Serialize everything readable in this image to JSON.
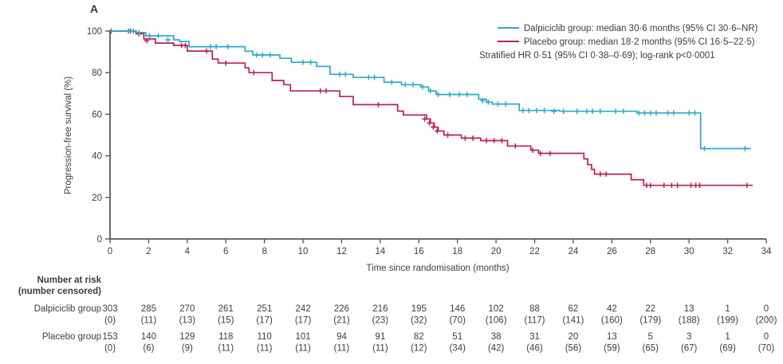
{
  "panel_label": "A",
  "colors": {
    "axis": "#58595b",
    "text": "#3d3d3d",
    "dalpiciclib": "#2fa9c8",
    "placebo": "#bc2052"
  },
  "chart_data": {
    "type": "line",
    "subtype": "kaplan-meier-step",
    "title": "A",
    "xlabel": "Time since randomisation (months)",
    "ylabel": "Progression-free survival (%)",
    "xlim": [
      0,
      34
    ],
    "ylim": [
      0,
      100
    ],
    "x_ticks": [
      0,
      2,
      4,
      6,
      8,
      10,
      12,
      14,
      16,
      18,
      20,
      22,
      24,
      26,
      28,
      30,
      32,
      34
    ],
    "y_ticks": [
      0,
      20,
      40,
      60,
      80,
      100
    ],
    "grid": false,
    "legend_position": "top-right",
    "legend": [
      {
        "label": "Dalpiciclib group: median 30·6 months (95% CI 30·6–NR)",
        "color": "#2fa9c8"
      },
      {
        "label": "Placebo group: median 18·2 months (95% CI 16·5–22·5)",
        "color": "#bc2052"
      }
    ],
    "annotation": "Stratified HR 0·51 (95% CI 0·38–0·69); log-rank p<0·0001",
    "series": [
      {
        "name": "Placebo group",
        "color": "#bc2052",
        "end": 33.3,
        "steps": [
          [
            0,
            100
          ],
          [
            1.35,
            98.7
          ],
          [
            1.75,
            96.2
          ],
          [
            2.35,
            94.2
          ],
          [
            3.3,
            93.1
          ],
          [
            4.0,
            90.4
          ],
          [
            5.3,
            86.5
          ],
          [
            5.6,
            84.6
          ],
          [
            7.0,
            82.3
          ],
          [
            7.2,
            80.0
          ],
          [
            8.4,
            76.2
          ],
          [
            9.0,
            74.2
          ],
          [
            9.35,
            71.2
          ],
          [
            11.9,
            68.5
          ],
          [
            12.6,
            64.6
          ],
          [
            14.9,
            61.5
          ],
          [
            15.2,
            59.6
          ],
          [
            16.4,
            57.7
          ],
          [
            16.6,
            55.8
          ],
          [
            16.8,
            53.8
          ],
          [
            17.0,
            51.9
          ],
          [
            17.3,
            50.0
          ],
          [
            18.2,
            48.5
          ],
          [
            19.2,
            47.3
          ],
          [
            20.6,
            44.7
          ],
          [
            21.8,
            42.7
          ],
          [
            22.2,
            41.2
          ],
          [
            24.55,
            38.5
          ],
          [
            24.75,
            35.8
          ],
          [
            24.95,
            33.5
          ],
          [
            25.1,
            31.2
          ],
          [
            27.0,
            28.5
          ],
          [
            27.65,
            25.8
          ]
        ],
        "censors": [
          [
            0.05,
            100
          ],
          [
            1.05,
            100
          ],
          [
            1.5,
            98.7
          ],
          [
            1.9,
            95.4
          ],
          [
            3.7,
            93.1
          ],
          [
            3.9,
            93.1
          ],
          [
            5.0,
            90.4
          ],
          [
            6.0,
            84.6
          ],
          [
            7.45,
            80.0
          ],
          [
            10.9,
            71.2
          ],
          [
            11.2,
            71.2
          ],
          [
            13.9,
            64.6
          ],
          [
            16.3,
            57.7
          ],
          [
            16.55,
            55.8
          ],
          [
            16.75,
            53.8
          ],
          [
            16.95,
            51.9
          ],
          [
            17.5,
            50.0
          ],
          [
            18.4,
            48.5
          ],
          [
            18.8,
            48.5
          ],
          [
            19.5,
            47.3
          ],
          [
            19.9,
            47.3
          ],
          [
            20.3,
            47.3
          ],
          [
            21.0,
            44.7
          ],
          [
            21.9,
            42.7
          ],
          [
            22.3,
            41.2
          ],
          [
            22.8,
            41.2
          ],
          [
            25.4,
            31.2
          ],
          [
            25.7,
            31.2
          ],
          [
            27.8,
            25.8
          ],
          [
            28.0,
            25.8
          ],
          [
            28.7,
            25.8
          ],
          [
            29.1,
            25.8
          ],
          [
            29.4,
            25.8
          ],
          [
            30.1,
            25.8
          ],
          [
            30.35,
            25.8
          ],
          [
            30.55,
            25.8
          ],
          [
            33.0,
            25.8
          ]
        ]
      },
      {
        "name": "Dalpiciclib group",
        "color": "#2fa9c8",
        "end": 33.2,
        "steps": [
          [
            0,
            100
          ],
          [
            1.3,
            99.3
          ],
          [
            1.85,
            97.7
          ],
          [
            3.3,
            95.8
          ],
          [
            3.6,
            95.0
          ],
          [
            4.1,
            92.5
          ],
          [
            7.0,
            90.3
          ],
          [
            7.4,
            88.5
          ],
          [
            8.8,
            86.9
          ],
          [
            9.4,
            85.0
          ],
          [
            10.7,
            83.0
          ],
          [
            11.4,
            79.2
          ],
          [
            12.6,
            77.7
          ],
          [
            14.2,
            75.4
          ],
          [
            15.1,
            74.2
          ],
          [
            16.1,
            73.1
          ],
          [
            16.5,
            71.2
          ],
          [
            16.9,
            69.5
          ],
          [
            19.1,
            67.3
          ],
          [
            19.5,
            65.8
          ],
          [
            19.8,
            64.9
          ],
          [
            21.2,
            61.8
          ],
          [
            23.3,
            61.4
          ],
          [
            27.3,
            60.6
          ],
          [
            30.6,
            43.5
          ]
        ],
        "censors": [
          [
            0.95,
            100
          ],
          [
            1.2,
            100
          ],
          [
            1.5,
            99.3
          ],
          [
            2.05,
            97.7
          ],
          [
            2.5,
            97.7
          ],
          [
            3.0,
            95.8
          ],
          [
            5.2,
            92.5
          ],
          [
            5.5,
            92.5
          ],
          [
            6.1,
            92.5
          ],
          [
            7.6,
            88.5
          ],
          [
            7.9,
            88.5
          ],
          [
            8.3,
            88.5
          ],
          [
            10.0,
            85.0
          ],
          [
            10.4,
            85.0
          ],
          [
            11.9,
            79.2
          ],
          [
            12.2,
            79.2
          ],
          [
            13.4,
            77.7
          ],
          [
            13.7,
            77.7
          ],
          [
            14.6,
            75.4
          ],
          [
            15.3,
            74.2
          ],
          [
            15.7,
            74.2
          ],
          [
            16.2,
            73.1
          ],
          [
            16.6,
            71.2
          ],
          [
            17.0,
            69.5
          ],
          [
            17.6,
            69.5
          ],
          [
            18.1,
            69.5
          ],
          [
            18.5,
            69.5
          ],
          [
            19.3,
            66.5
          ],
          [
            19.6,
            65.8
          ],
          [
            20.1,
            64.9
          ],
          [
            20.5,
            64.9
          ],
          [
            21.4,
            61.8
          ],
          [
            21.7,
            61.8
          ],
          [
            22.1,
            61.8
          ],
          [
            22.5,
            61.8
          ],
          [
            23.0,
            61.4
          ],
          [
            23.5,
            61.4
          ],
          [
            24.2,
            61.4
          ],
          [
            24.7,
            61.4
          ],
          [
            25.0,
            61.4
          ],
          [
            25.4,
            61.4
          ],
          [
            26.2,
            61.4
          ],
          [
            26.6,
            61.4
          ],
          [
            27.4,
            60.6
          ],
          [
            27.7,
            60.6
          ],
          [
            28.0,
            60.6
          ],
          [
            28.3,
            60.6
          ],
          [
            28.9,
            60.6
          ],
          [
            29.2,
            60.6
          ],
          [
            30.0,
            60.6
          ],
          [
            30.3,
            60.6
          ],
          [
            30.8,
            43.5
          ],
          [
            32.9,
            43.5
          ]
        ]
      }
    ]
  },
  "risk_table": {
    "title": "Number at risk",
    "subtitle": "(number censored)",
    "columns_months": [
      0,
      2,
      4,
      6,
      8,
      10,
      12,
      14,
      16,
      18,
      20,
      22,
      24,
      26,
      28,
      30,
      32,
      34
    ],
    "rows": [
      {
        "label": "Dalpiciclib group",
        "at_risk": [
          303,
          285,
          270,
          261,
          251,
          242,
          226,
          216,
          195,
          146,
          102,
          88,
          62,
          42,
          22,
          13,
          1,
          0
        ],
        "censored": [
          0,
          11,
          13,
          15,
          17,
          17,
          21,
          23,
          32,
          70,
          106,
          117,
          141,
          160,
          179,
          188,
          199,
          200
        ]
      },
      {
        "label": "Placebo group",
        "at_risk": [
          153,
          140,
          129,
          118,
          110,
          101,
          94,
          91,
          82,
          51,
          38,
          31,
          20,
          13,
          5,
          3,
          1,
          0
        ],
        "censored": [
          0,
          6,
          9,
          11,
          11,
          11,
          11,
          11,
          12,
          34,
          42,
          46,
          56,
          59,
          65,
          67,
          69,
          70
        ]
      }
    ]
  }
}
